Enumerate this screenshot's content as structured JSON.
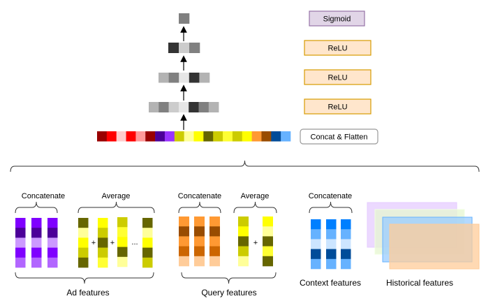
{
  "layers": {
    "output": {
      "label": "Sigmoid",
      "fill": "#E1D5E7",
      "stroke": "#9673A6",
      "cells": [
        "#808080"
      ]
    },
    "hidden3": {
      "label": "ReLU",
      "fill": "#FFE6CC",
      "stroke": "#D79B00",
      "cells": [
        "#333333",
        "#CCCCCC",
        "#808080"
      ]
    },
    "hidden2": {
      "label": "ReLU",
      "fill": "#FFE6CC",
      "stroke": "#D79B00",
      "cells": [
        "#B3B3B3",
        "#808080",
        "#E6E6E6",
        "#333333",
        "#B3B3B3"
      ]
    },
    "hidden1": {
      "label": "ReLU",
      "fill": "#FFE6CC",
      "stroke": "#D79B00",
      "cells": [
        "#B3B3B3",
        "#808080",
        "#CCCCCC",
        "#E6E6E6",
        "#333333",
        "#808080",
        "#B3B3B3"
      ]
    },
    "concat": {
      "label": "Concat & Flatten",
      "fill": "#FFFFFF",
      "stroke": "#999999",
      "cells": [
        "#990000",
        "#FF0000",
        "#FFCCCC",
        "#FF0000",
        "#FF9999",
        "#990000",
        "#4C0099",
        "#9933FF",
        "#CCCC00",
        "#FFFF99",
        "#FFFF00",
        "#666600",
        "#CCCC00",
        "#FFFF33",
        "#CCCC00",
        "#FFFF00",
        "#FF9933",
        "#994C00",
        "#004C99",
        "#66B2FF"
      ]
    }
  },
  "ad": {
    "label": "Ad features",
    "concat_label": "Concatenate",
    "average_label": "Average",
    "concat_column": [
      "#7F00FF",
      "#4C0099",
      "#CC99FF",
      "#7F00FF",
      "#B266FF"
    ],
    "average_columns": [
      [
        "#666600",
        "#FFFF99",
        "#FFFF00",
        "#CCCC00",
        "#666600"
      ],
      [
        "#FFFF00",
        "#CCCC00",
        "#666600",
        "#CCCC00",
        "#FFFF33"
      ],
      [
        "#CCCC00",
        "#FFFF33",
        "#FFFF00",
        "#666600",
        "#FFFF99"
      ],
      [
        "#666600",
        "#FFFF99",
        "#FFFF00",
        "#666600",
        "#CCCC00"
      ]
    ],
    "plus": "+",
    "ellipsis": "..."
  },
  "query": {
    "label": "Query features",
    "concat_label": "Concatenate",
    "average_label": "Average",
    "concat_column": [
      "#FF9933",
      "#994C00",
      "#FF9933",
      "#CC6600",
      "#FFCC99"
    ],
    "average_columns": [
      [
        "#CCCC00",
        "#FFFF00",
        "#666600",
        "#CCCC00",
        "#FFFF99"
      ],
      [
        "#FFFF00",
        "#FFFF99",
        "#666600",
        "#FFFF33",
        "#666600"
      ]
    ],
    "plus": "+"
  },
  "context": {
    "label": "Context features",
    "concat_label": "Concatenate",
    "concat_column": [
      "#007FFF",
      "#66B2FF",
      "#CCE5FF",
      "#004C99",
      "#66B2FF"
    ]
  },
  "historical": {
    "label": "Historical features",
    "layers": [
      {
        "fill": "#E5CCFF",
        "stroke": "#E5CCFF"
      },
      {
        "fill": "#E6F5D0",
        "stroke": "#F0FFE0"
      },
      {
        "fill": "#99CCFF",
        "stroke": "#66B2FF"
      },
      {
        "fill": "#FFCC99",
        "stroke": "#FFCC99"
      }
    ]
  }
}
